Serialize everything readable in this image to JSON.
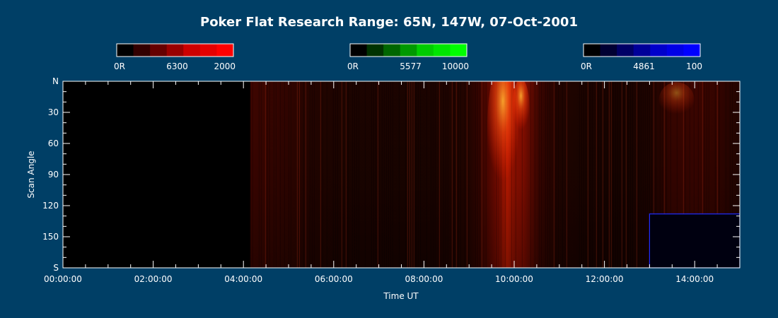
{
  "chart_data": {
    "type": "heatmap",
    "title": "Poker Flat Research Range: 65N, 147W, 07-Oct-2001",
    "xlabel": "Time UT",
    "ylabel": "Scan Angle",
    "x_range_hours": [
      0,
      15
    ],
    "x_ticks": [
      {
        "hour": 0,
        "label": "00:00:00"
      },
      {
        "hour": 2,
        "label": "02:00:00"
      },
      {
        "hour": 4,
        "label": "04:00:00"
      },
      {
        "hour": 6,
        "label": "06:00:00"
      },
      {
        "hour": 8,
        "label": "08:00:00"
      },
      {
        "hour": 10,
        "label": "10:00:00"
      },
      {
        "hour": 12,
        "label": "12:00:00"
      },
      {
        "hour": 14,
        "label": "14:00:00"
      }
    ],
    "y_range_deg": [
      0,
      180
    ],
    "y_ticks": [
      {
        "deg": 0,
        "label": "N"
      },
      {
        "deg": 30,
        "label": "30"
      },
      {
        "deg": 60,
        "label": "60"
      },
      {
        "deg": 90,
        "label": "90"
      },
      {
        "deg": 120,
        "label": "120"
      },
      {
        "deg": 150,
        "label": "150"
      },
      {
        "deg": 180,
        "label": "S"
      }
    ],
    "colorbars": [
      {
        "name": "6300",
        "min_label": "0R",
        "mid_label": "6300",
        "max_label": "2000",
        "max_rayleigh": 2000,
        "colors": [
          "#000000",
          "#330000",
          "#660000",
          "#990000",
          "#cc0000",
          "#e60000",
          "#ff0000"
        ]
      },
      {
        "name": "5577",
        "min_label": "0R",
        "mid_label": "5577",
        "max_label": "10000",
        "max_rayleigh": 10000,
        "colors": [
          "#000000",
          "#003300",
          "#006600",
          "#009900",
          "#00cc00",
          "#00e600",
          "#00ff00"
        ]
      },
      {
        "name": "4861",
        "min_label": "0R",
        "mid_label": "4861",
        "max_label": "100",
        "max_rayleigh": 100,
        "colors": [
          "#000000",
          "#000033",
          "#000066",
          "#000099",
          "#0000cc",
          "#0000e6",
          "#0000ff"
        ]
      }
    ],
    "red_coverage_hours": [
      4.15,
      15
    ],
    "red_intensity_profile": [
      [
        4.15,
        0.34
      ],
      [
        4.5,
        0.3
      ],
      [
        5.0,
        0.26
      ],
      [
        5.5,
        0.18
      ],
      [
        6.0,
        0.14
      ],
      [
        6.5,
        0.12
      ],
      [
        7.0,
        0.12
      ],
      [
        7.5,
        0.11
      ],
      [
        8.0,
        0.11
      ],
      [
        8.5,
        0.14
      ],
      [
        9.0,
        0.18
      ],
      [
        9.3,
        0.35
      ],
      [
        9.6,
        0.6
      ],
      [
        9.85,
        0.85
      ],
      [
        10.0,
        0.7
      ],
      [
        10.2,
        0.65
      ],
      [
        10.6,
        0.3
      ],
      [
        11.0,
        0.16
      ],
      [
        11.5,
        0.12
      ],
      [
        12.0,
        0.1
      ],
      [
        12.5,
        0.1
      ],
      [
        13.0,
        0.14
      ],
      [
        13.5,
        0.3
      ],
      [
        14.0,
        0.32
      ],
      [
        14.5,
        0.28
      ],
      [
        15.0,
        0.16
      ]
    ],
    "blue_coverage": {
      "start_hour": 13.0,
      "end_hour": 15.0,
      "from_deg": 128,
      "to_deg": 180
    }
  }
}
